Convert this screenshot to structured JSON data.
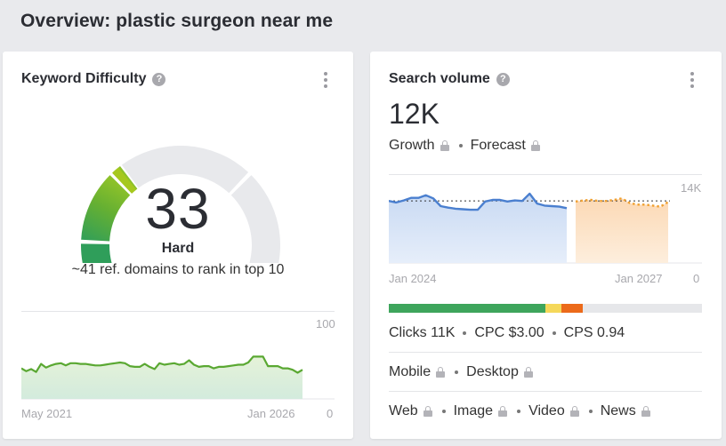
{
  "page": {
    "title": "Overview: plastic surgeon near me"
  },
  "keyword_difficulty": {
    "title": "Keyword Difficulty",
    "help_icon": "question-circle-icon",
    "menu_icon": "kebab-menu-icon",
    "value": "33",
    "label": "Hard",
    "subtitle": "~41 ref. domains to rank in top 10",
    "gauge": {
      "max": 100,
      "value": 33,
      "fill_colors": [
        "#2f9e5a",
        "#66b032",
        "#a6c81e"
      ],
      "track_color": "#e8e9ec"
    },
    "chart": {
      "y_max_label": "100",
      "y_min_label": "0",
      "x_start_label": "May 2021",
      "x_end_label": "Jan 2026",
      "line_color": "#5aa832",
      "fill_color": "#d8eedd"
    }
  },
  "search_volume": {
    "title": "Search volume",
    "help_icon": "question-circle-icon",
    "menu_icon": "kebab-menu-icon",
    "value": "12K",
    "growth_label": "Growth",
    "forecast_label": "Forecast",
    "chart": {
      "y_max_label": "14K",
      "y_min_label": "0",
      "x_start_label": "Jan 2024",
      "x_end_label": "Jan 2027",
      "history_color": "#4a7fcf",
      "forecast_color": "#f0a030"
    },
    "intent_bar": [
      {
        "name": "green",
        "percent": 50,
        "color": "#3ea55c"
      },
      {
        "name": "yellow",
        "percent": 5,
        "color": "#f5d85a"
      },
      {
        "name": "orange",
        "percent": 7,
        "color": "#ec6a1a"
      }
    ],
    "metrics": {
      "clicks": "Clicks 11K",
      "cpc": "CPC $3.00",
      "cps": "CPS 0.94"
    },
    "devices": {
      "mobile": "Mobile",
      "desktop": "Desktop"
    },
    "serp_types": {
      "web": "Web",
      "image": "Image",
      "video": "Video",
      "news": "News"
    }
  },
  "chart_data": [
    {
      "type": "area",
      "title": "Keyword Difficulty history",
      "x_range": [
        "May 2021",
        "Jan 2026"
      ],
      "ylim": [
        0,
        100
      ],
      "values": [
        42,
        38,
        41,
        37,
        48,
        43,
        46,
        48,
        49,
        46,
        49,
        49,
        48,
        48,
        47,
        46,
        46,
        47,
        48,
        49,
        50,
        49,
        45,
        44,
        44,
        48,
        44,
        41,
        49,
        47,
        48,
        49,
        47,
        48,
        53,
        47,
        44,
        45,
        45,
        42,
        44,
        44,
        45,
        46,
        47,
        47,
        50,
        58,
        58,
        58,
        45,
        45,
        45,
        42,
        42,
        40,
        36,
        40
      ]
    },
    {
      "type": "area",
      "title": "Search volume history & forecast",
      "x_range": [
        "Jan 2024",
        "Jan 2027"
      ],
      "ylim": [
        0,
        14000
      ],
      "reference_line": 12000,
      "series": [
        {
          "name": "history",
          "values": [
            12000,
            11700,
            12100,
            12600,
            12600,
            13100,
            12500,
            11000,
            10700,
            10500,
            10400,
            10300,
            10300,
            11900,
            12200,
            12200,
            11900,
            12100,
            12000,
            13400,
            11500,
            11100,
            11000,
            10900,
            10600
          ]
        },
        {
          "name": "forecast",
          "values": [
            11900,
            12100,
            12200,
            12000,
            12000,
            12200,
            12500,
            11600,
            11300,
            11300,
            11100,
            10900,
            11800
          ]
        }
      ]
    }
  ]
}
